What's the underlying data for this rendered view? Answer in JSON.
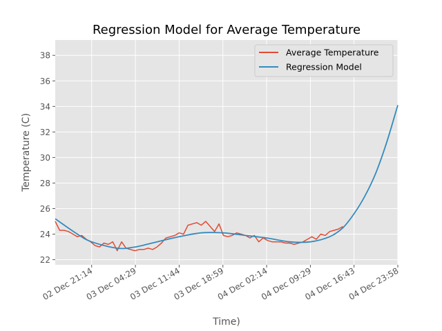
{
  "chart_data": {
    "type": "line",
    "title": "Regression Model for Average Temperature",
    "xlabel": "Time)",
    "ylabel": "Temperature (C)",
    "x_tick_labels": [
      "02 Dec 21:14",
      "03 Dec 04:29",
      "03 Dec 11:44",
      "03 Dec 18:59",
      "04 Dec 02:14",
      "04 Dec 09:29",
      "04 Dec 16:43",
      "04 Dec 23:58"
    ],
    "x_ticks": [
      "2024-12-02T21:14",
      "2024-12-03T04:29",
      "2024-12-03T11:44",
      "2024-12-03T18:59",
      "2024-12-04T02:14",
      "2024-12-04T09:29",
      "2024-12-04T16:43",
      "2024-12-04T23:58"
    ],
    "xlim": [
      "2024-12-02T15:12",
      "2024-12-04T23:58"
    ],
    "ylim": [
      21.6,
      39.2
    ],
    "y_ticks": [
      22,
      24,
      26,
      28,
      30,
      32,
      34,
      36,
      38
    ],
    "grid": true,
    "legend_position": "top-right",
    "series": [
      {
        "name": "Average Temperature",
        "color": "#E24A33",
        "x": [
          "2024-12-02T15:12",
          "2024-12-02T15:56",
          "2024-12-02T16:40",
          "2024-12-02T17:24",
          "2024-12-02T18:08",
          "2024-12-02T18:52",
          "2024-12-02T19:36",
          "2024-12-02T20:20",
          "2024-12-02T21:04",
          "2024-12-02T21:48",
          "2024-12-02T22:32",
          "2024-12-02T23:16",
          "2024-12-03T00:00",
          "2024-12-03T00:44",
          "2024-12-03T01:28",
          "2024-12-03T02:12",
          "2024-12-03T02:56",
          "2024-12-03T03:40",
          "2024-12-03T04:24",
          "2024-12-03T05:08",
          "2024-12-03T05:52",
          "2024-12-03T06:36",
          "2024-12-03T07:20",
          "2024-12-03T08:04",
          "2024-12-03T08:48",
          "2024-12-03T09:32",
          "2024-12-03T10:16",
          "2024-12-03T11:00",
          "2024-12-03T11:44",
          "2024-12-03T12:28",
          "2024-12-03T13:12",
          "2024-12-03T13:56",
          "2024-12-03T14:40",
          "2024-12-03T15:24",
          "2024-12-03T16:08",
          "2024-12-03T16:52",
          "2024-12-03T17:36",
          "2024-12-03T18:20",
          "2024-12-03T19:04",
          "2024-12-03T19:48",
          "2024-12-03T20:32",
          "2024-12-03T21:16",
          "2024-12-03T22:00",
          "2024-12-03T22:44",
          "2024-12-03T23:28",
          "2024-12-04T00:12",
          "2024-12-04T00:56",
          "2024-12-04T01:40",
          "2024-12-04T02:24",
          "2024-12-04T03:08",
          "2024-12-04T03:52",
          "2024-12-04T04:36",
          "2024-12-04T05:20",
          "2024-12-04T06:04",
          "2024-12-04T06:48",
          "2024-12-04T07:32",
          "2024-12-04T08:16",
          "2024-12-04T09:00",
          "2024-12-04T09:44",
          "2024-12-04T10:28",
          "2024-12-04T11:12",
          "2024-12-04T11:56",
          "2024-12-04T12:40",
          "2024-12-04T13:24",
          "2024-12-04T14:08",
          "2024-12-04T14:52"
        ],
        "y": [
          25.0,
          24.3,
          24.3,
          24.2,
          24.0,
          23.8,
          23.9,
          23.6,
          23.4,
          23.1,
          23.0,
          23.3,
          23.2,
          23.4,
          22.7,
          23.4,
          22.9,
          22.8,
          22.7,
          22.8,
          22.8,
          22.9,
          22.8,
          23.0,
          23.3,
          23.7,
          23.8,
          23.9,
          24.1,
          24.0,
          24.7,
          24.8,
          24.9,
          24.7,
          25.0,
          24.6,
          24.2,
          24.8,
          23.9,
          23.8,
          23.9,
          24.1,
          24.0,
          23.9,
          23.7,
          23.9,
          23.4,
          23.7,
          23.5,
          23.4,
          23.4,
          23.4,
          23.3,
          23.3,
          23.2,
          23.3,
          23.4,
          23.6,
          23.8,
          23.6,
          24.0,
          23.9,
          24.2,
          24.3,
          24.4,
          24.6
        ]
      },
      {
        "name": "Regression Model",
        "color": "#348ABD",
        "x": [
          "2024-12-02T15:12",
          "2024-12-02T18:52",
          "2024-12-02T21:14",
          "2024-12-03T01:28",
          "2024-12-03T04:29",
          "2024-12-03T08:04",
          "2024-12-03T11:44",
          "2024-12-03T15:24",
          "2024-12-03T18:59",
          "2024-12-03T22:44",
          "2024-12-04T02:14",
          "2024-12-04T06:04",
          "2024-12-04T09:29",
          "2024-12-04T12:40",
          "2024-12-04T14:52",
          "2024-12-04T16:43",
          "2024-12-04T18:32",
          "2024-12-04T20:20",
          "2024-12-04T22:08",
          "2024-12-04T23:58"
        ],
        "y": [
          25.2,
          24.0,
          23.4,
          22.9,
          23.0,
          23.4,
          23.8,
          24.1,
          24.1,
          23.9,
          23.7,
          23.4,
          23.4,
          23.8,
          24.5,
          25.6,
          27.0,
          28.8,
          31.2,
          34.1
        ]
      }
    ]
  }
}
